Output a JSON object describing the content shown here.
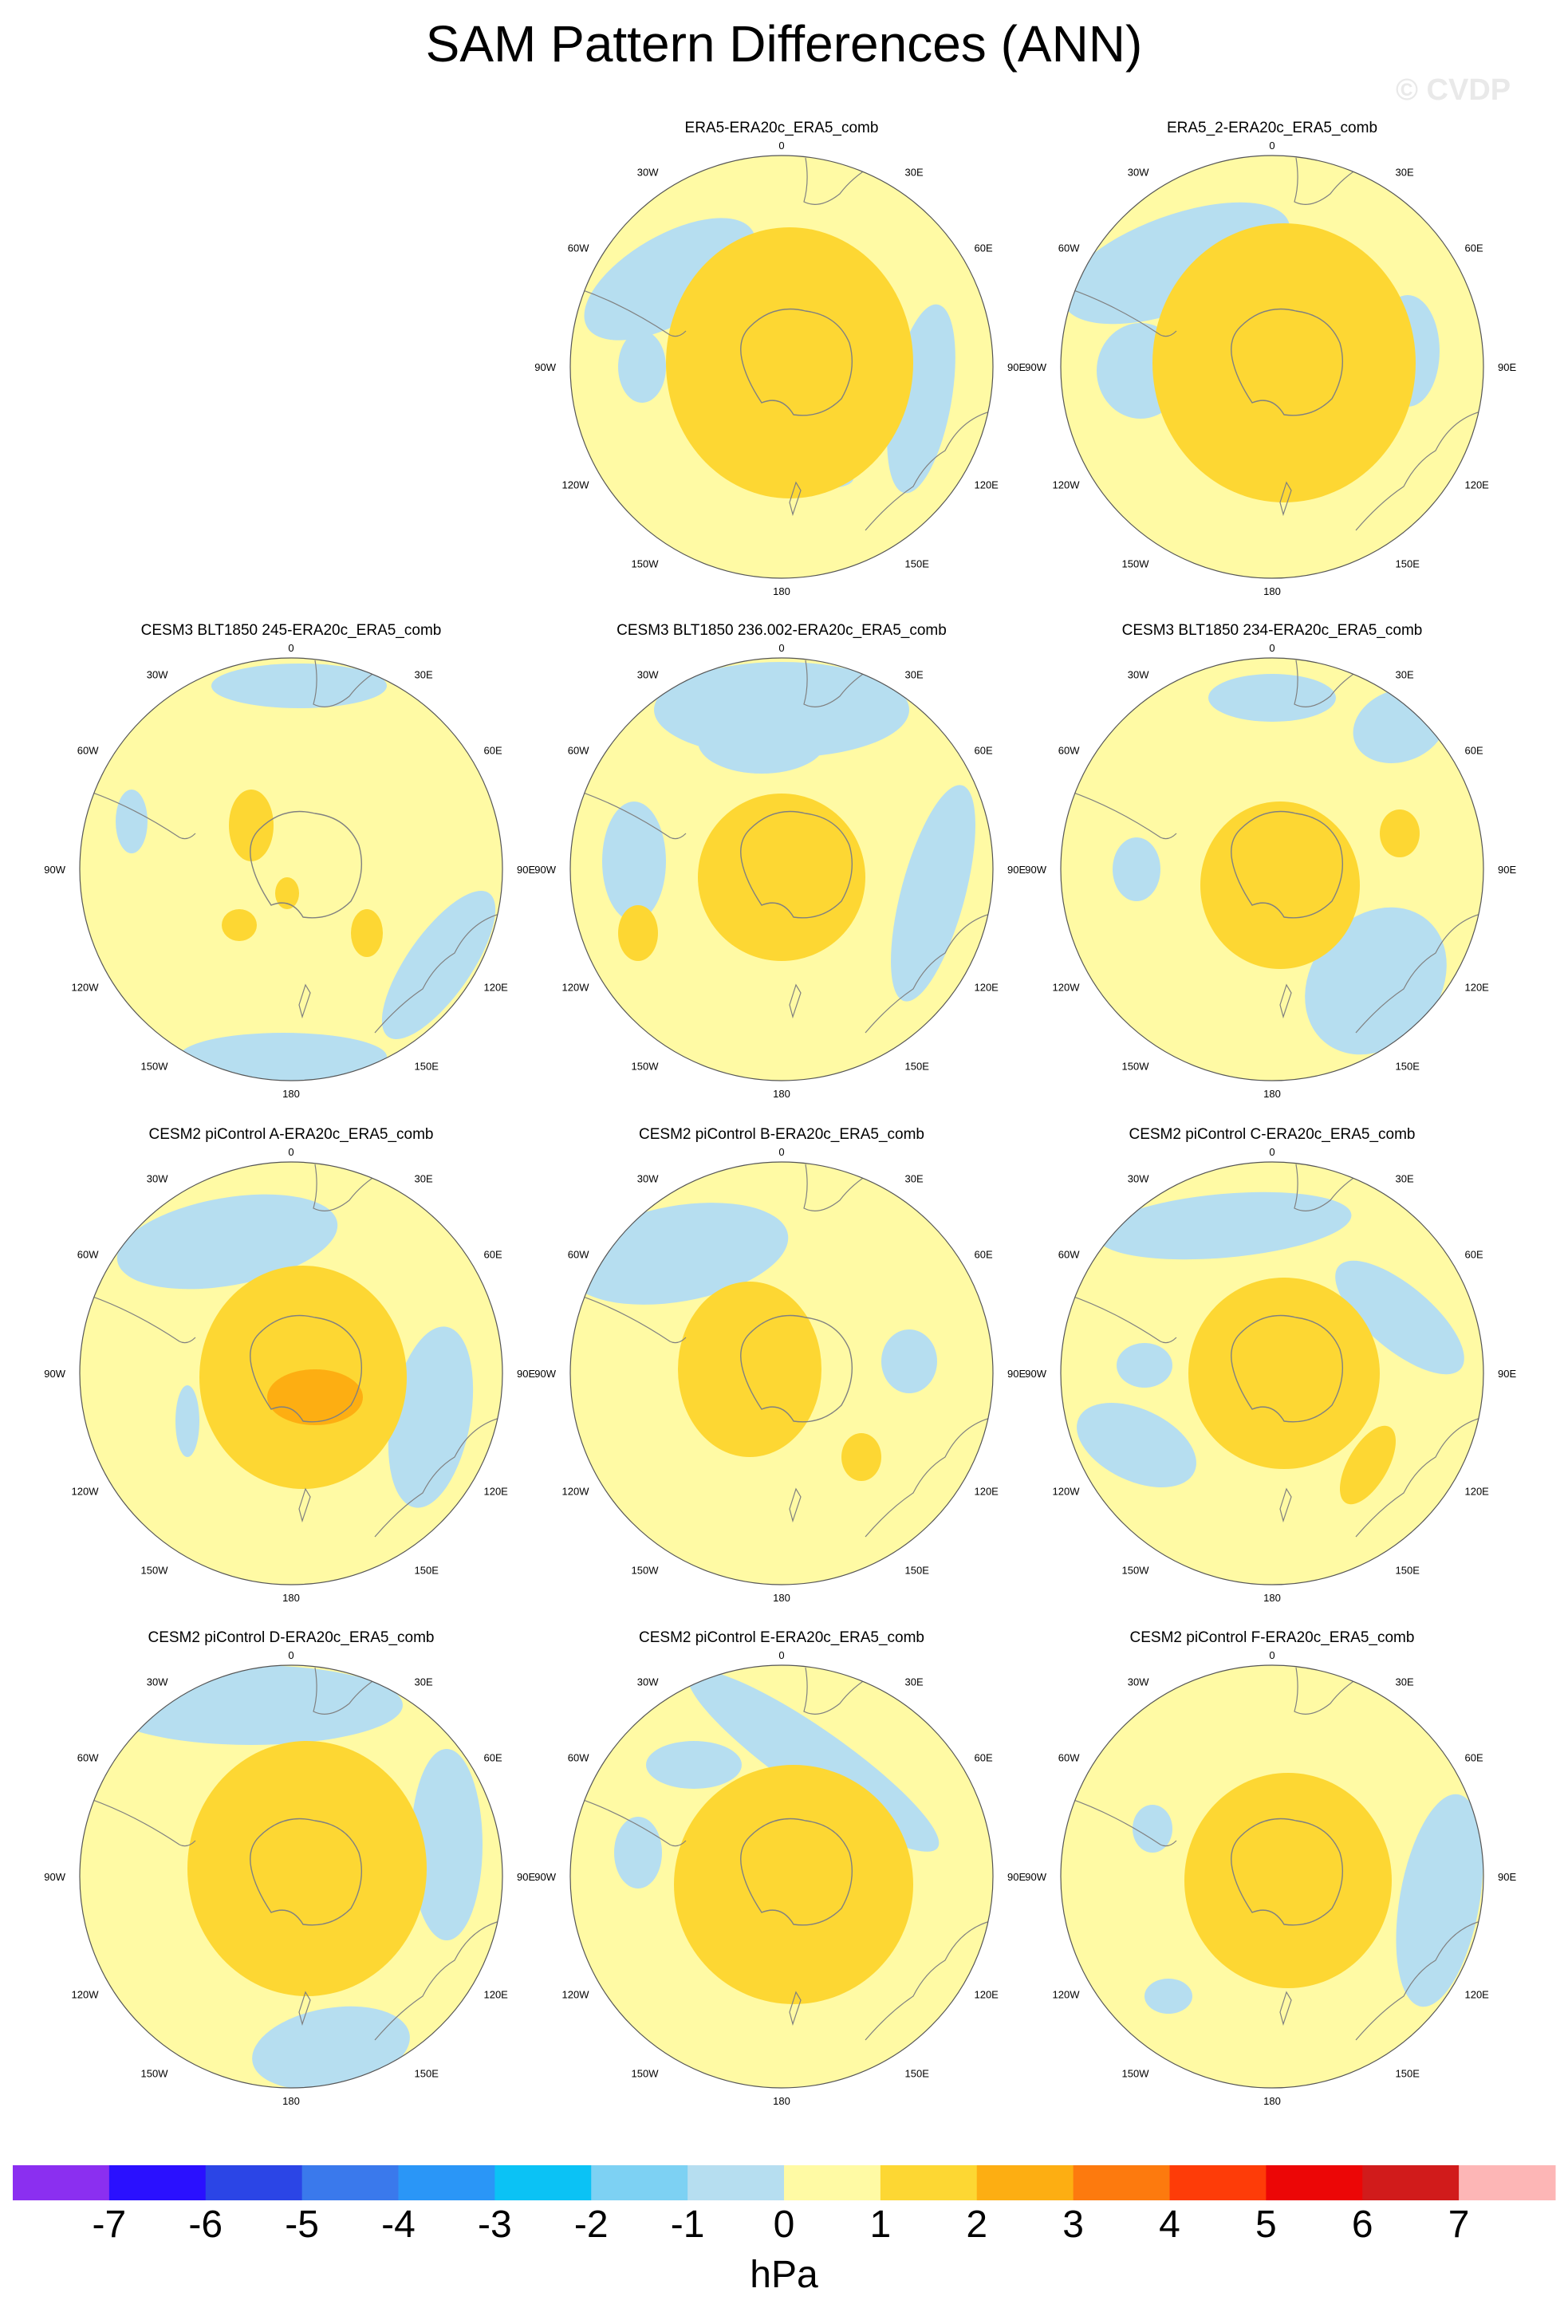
{
  "title": "SAM Pattern Differences (ANN)",
  "watermark": "© CVDP",
  "map_labels": {
    "top": "0",
    "bottom": "180",
    "left": "90W",
    "right": "90E",
    "upper_left_inner": "30W",
    "upper_right_inner": "30E",
    "upper_left_outer": "60W",
    "upper_right_outer": "60E",
    "lower_left_outer": "120W",
    "lower_right_outer": "120E",
    "lower_left_inner": "150W",
    "lower_right_inner": "150E"
  },
  "panels": [
    {
      "title": "ERA5-ERA20c_ERA5_comb"
    },
    {
      "title": "ERA5_2-ERA20c_ERA5_comb"
    },
    {
      "title": "CESM3 BLT1850 245-ERA20c_ERA5_comb"
    },
    {
      "title": "CESM3 BLT1850 236.002-ERA20c_ERA5_comb"
    },
    {
      "title": "CESM3 BLT1850 234-ERA20c_ERA5_comb"
    },
    {
      "title": "CESM2 piControl A-ERA20c_ERA5_comb"
    },
    {
      "title": "CESM2 piControl B-ERA20c_ERA5_comb"
    },
    {
      "title": "CESM2 piControl C-ERA20c_ERA5_comb"
    },
    {
      "title": "CESM2 piControl D-ERA20c_ERA5_comb"
    },
    {
      "title": "CESM2 piControl E-ERA20c_ERA5_comb"
    },
    {
      "title": "CESM2 piControl F-ERA20c_ERA5_comb"
    }
  ],
  "colorbar": {
    "units": "hPa",
    "ticks": [
      "-7",
      "-6",
      "-5",
      "-4",
      "-3",
      "-2",
      "-1",
      "0",
      "1",
      "2",
      "3",
      "4",
      "5",
      "6",
      "7"
    ],
    "colors": [
      "#8b2ff0",
      "#2a10ff",
      "#2b45e6",
      "#3a79ec",
      "#2a96f7",
      "#0bc2f5",
      "#7dd1f3",
      "#b6def0",
      "#fffaa4",
      "#fdd733",
      "#fdae12",
      "#fd7a0e",
      "#fe3c08",
      "#ec0606",
      "#d11b1b",
      "#fdb6b6"
    ]
  },
  "colors": {
    "neg_fill": "#b6def0",
    "pos_fill": "#fffaa4",
    "fill_1to2": "#fdd733",
    "fill_2to3": "#fdae12",
    "coast": "#808080"
  }
}
